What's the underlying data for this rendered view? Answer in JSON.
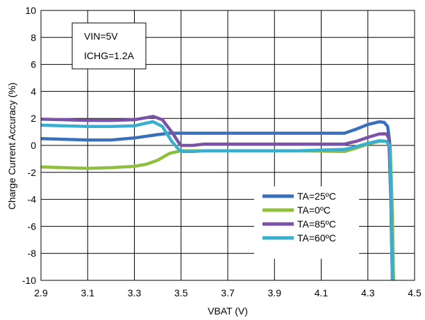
{
  "chart_data": {
    "type": "line",
    "title": "",
    "xlabel": "VBAT (V)",
    "ylabel": "Charge Current Accuracy (%)",
    "xlim": [
      2.9,
      4.5
    ],
    "ylim": [
      -10,
      10
    ],
    "xticks": [
      2.9,
      3.1,
      3.3,
      3.5,
      3.7,
      3.9,
      4.1,
      4.3,
      4.5
    ],
    "yticks": [
      -10,
      -8,
      -6,
      -4,
      -2,
      0,
      2,
      4,
      6,
      8,
      10
    ],
    "xtick_labels": [
      "2.9",
      "3.1",
      "3.3",
      "3.5",
      "3.7",
      "3.9",
      "4.1",
      "4.3",
      "4.5"
    ],
    "ytick_labels": [
      "-10",
      "-8",
      "-6",
      "-4",
      "-2",
      "0",
      "2",
      "4",
      "6",
      "8",
      "10"
    ],
    "grid": true,
    "legend_position": "bottom-right",
    "annotation": [
      "VIN=5V",
      "ICHG=1.2A"
    ],
    "series": [
      {
        "name": "TA=25ºC",
        "color": "#3a6fb9",
        "points": [
          [
            2.9,
            0.5
          ],
          [
            3.0,
            0.45
          ],
          [
            3.1,
            0.4
          ],
          [
            3.2,
            0.4
          ],
          [
            3.3,
            0.55
          ],
          [
            3.4,
            0.8
          ],
          [
            3.45,
            0.9
          ],
          [
            3.5,
            0.9
          ],
          [
            3.7,
            0.9
          ],
          [
            3.9,
            0.9
          ],
          [
            4.1,
            0.9
          ],
          [
            4.2,
            0.9
          ],
          [
            4.25,
            1.2
          ],
          [
            4.3,
            1.55
          ],
          [
            4.35,
            1.75
          ],
          [
            4.37,
            1.7
          ],
          [
            4.385,
            1.4
          ],
          [
            4.395,
            0.0
          ],
          [
            4.4,
            -6
          ],
          [
            4.405,
            -10
          ]
        ]
      },
      {
        "name": "TA=0ºC",
        "color": "#8fbf3f",
        "points": [
          [
            2.9,
            -1.6
          ],
          [
            3.0,
            -1.65
          ],
          [
            3.1,
            -1.7
          ],
          [
            3.2,
            -1.65
          ],
          [
            3.3,
            -1.55
          ],
          [
            3.35,
            -1.4
          ],
          [
            3.4,
            -1.1
          ],
          [
            3.45,
            -0.6
          ],
          [
            3.5,
            -0.4
          ],
          [
            3.6,
            -0.4
          ],
          [
            3.8,
            -0.4
          ],
          [
            4.0,
            -0.4
          ],
          [
            4.2,
            -0.45
          ],
          [
            4.25,
            -0.2
          ],
          [
            4.3,
            0.1
          ],
          [
            4.35,
            0.3
          ],
          [
            4.38,
            0.3
          ],
          [
            4.395,
            0.15
          ],
          [
            4.405,
            -5
          ],
          [
            4.41,
            -10
          ]
        ]
      },
      {
        "name": "TA=85ºC",
        "color": "#7a52a6",
        "points": [
          [
            2.9,
            1.95
          ],
          [
            3.0,
            1.9
          ],
          [
            3.1,
            1.85
          ],
          [
            3.2,
            1.85
          ],
          [
            3.3,
            1.9
          ],
          [
            3.35,
            2.05
          ],
          [
            3.38,
            2.15
          ],
          [
            3.42,
            1.9
          ],
          [
            3.46,
            1.0
          ],
          [
            3.49,
            0.2
          ],
          [
            3.5,
            0.0
          ],
          [
            3.55,
            0.0
          ],
          [
            3.6,
            0.1
          ],
          [
            3.8,
            0.1
          ],
          [
            4.0,
            0.1
          ],
          [
            4.2,
            0.1
          ],
          [
            4.25,
            0.3
          ],
          [
            4.3,
            0.6
          ],
          [
            4.35,
            0.85
          ],
          [
            4.38,
            0.85
          ],
          [
            4.39,
            0.5
          ],
          [
            4.4,
            -5
          ],
          [
            4.405,
            -10
          ]
        ]
      },
      {
        "name": "TA=60ºC",
        "color": "#3aaed0",
        "points": [
          [
            2.9,
            1.5
          ],
          [
            3.0,
            1.45
          ],
          [
            3.1,
            1.4
          ],
          [
            3.2,
            1.4
          ],
          [
            3.3,
            1.45
          ],
          [
            3.35,
            1.65
          ],
          [
            3.38,
            1.75
          ],
          [
            3.42,
            1.4
          ],
          [
            3.46,
            0.3
          ],
          [
            3.49,
            -0.3
          ],
          [
            3.5,
            -0.45
          ],
          [
            3.55,
            -0.45
          ],
          [
            3.6,
            -0.4
          ],
          [
            3.8,
            -0.4
          ],
          [
            4.0,
            -0.4
          ],
          [
            4.2,
            -0.3
          ],
          [
            4.25,
            -0.1
          ],
          [
            4.3,
            0.15
          ],
          [
            4.35,
            0.35
          ],
          [
            4.38,
            0.3
          ],
          [
            4.395,
            -0.1
          ],
          [
            4.4,
            -5
          ],
          [
            4.405,
            -10
          ]
        ]
      }
    ]
  }
}
